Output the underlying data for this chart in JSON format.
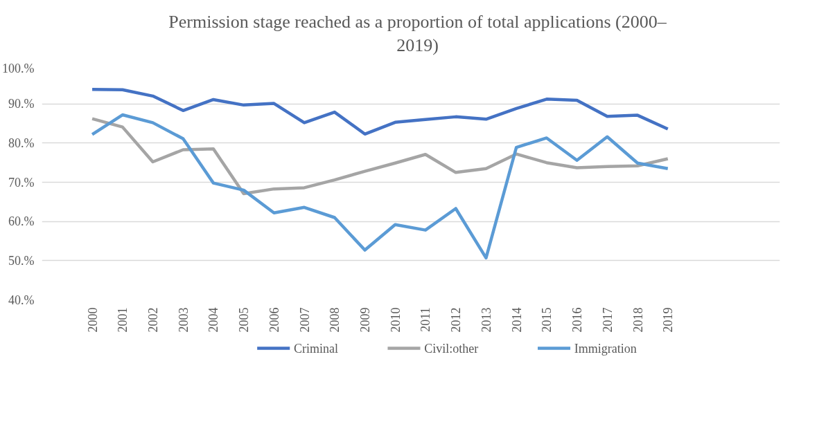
{
  "chart_data": {
    "type": "line",
    "title": "Permission stage reached as a proportion of total applications (2000–2019)",
    "categories": [
      "2000",
      "2001",
      "2002",
      "2003",
      "2004",
      "2005",
      "2006",
      "2007",
      "2008",
      "2009",
      "2010",
      "2011",
      "2012",
      "2013",
      "2014",
      "2015",
      "2016",
      "2017",
      "2018",
      "2019"
    ],
    "series": [
      {
        "name": "Criminal",
        "color": "#4472c4",
        "values": [
          93.7,
          93.6,
          92.0,
          88.3,
          91.1,
          89.7,
          90.1,
          85.2,
          87.9,
          82.3,
          85.3,
          86.0,
          86.7,
          86.1,
          88.8,
          91.2,
          90.9,
          86.8,
          87.1,
          83.6
        ]
      },
      {
        "name": "Civil:other",
        "color": "#a5a5a5",
        "values": [
          86.2,
          84.1,
          75.2,
          78.3,
          78.5,
          67.1,
          68.3,
          68.6,
          70.6,
          72.8,
          74.9,
          77.1,
          72.5,
          73.5,
          77.2,
          75.0,
          73.7,
          74.0,
          74.2,
          76.0
        ]
      },
      {
        "name": "Immigration",
        "color": "#5b9bd5",
        "values": [
          82.2,
          87.2,
          85.2,
          81.1,
          69.8,
          68.0,
          62.2,
          63.6,
          61.0,
          52.7,
          59.2,
          57.8,
          63.3,
          50.7,
          78.9,
          81.3,
          75.6,
          81.6,
          74.9,
          73.5
        ]
      }
    ],
    "ylim": [
      40,
      100
    ],
    "yticks": [
      {
        "value": 40,
        "label": "40.%"
      },
      {
        "value": 50,
        "label": "50.%"
      },
      {
        "value": 60,
        "label": "60.%"
      },
      {
        "value": 70,
        "label": "70.%"
      },
      {
        "value": 80,
        "label": "80.%"
      },
      {
        "value": 90,
        "label": "90.%"
      },
      {
        "value": 100,
        "label": "100.%"
      }
    ],
    "grid": "y",
    "legend": "bottom",
    "line_style": "solid",
    "marker": "none"
  }
}
